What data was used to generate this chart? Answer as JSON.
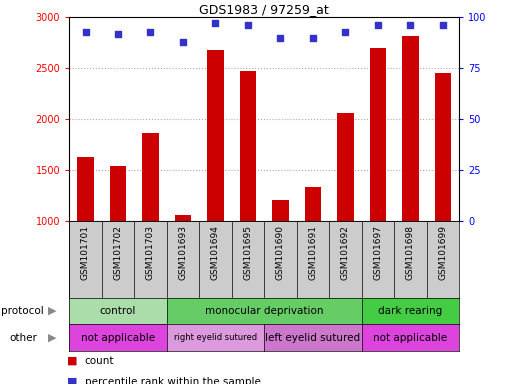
{
  "title": "GDS1983 / 97259_at",
  "samples": [
    "GSM101701",
    "GSM101702",
    "GSM101703",
    "GSM101693",
    "GSM101694",
    "GSM101695",
    "GSM101690",
    "GSM101691",
    "GSM101692",
    "GSM101697",
    "GSM101698",
    "GSM101699"
  ],
  "counts": [
    1630,
    1540,
    1860,
    1060,
    2680,
    2470,
    1200,
    1330,
    2060,
    2700,
    2820,
    2450
  ],
  "percentiles": [
    93,
    92,
    93,
    88,
    97,
    96,
    90,
    90,
    93,
    96,
    96,
    96
  ],
  "ylim_left": [
    1000,
    3000
  ],
  "ylim_right": [
    0,
    100
  ],
  "yticks_left": [
    1000,
    1500,
    2000,
    2500,
    3000
  ],
  "yticks_right": [
    0,
    25,
    50,
    75,
    100
  ],
  "bar_color": "#cc0000",
  "dot_color": "#3333cc",
  "grid_color": "#aaaaaa",
  "xtick_bg": "#cccccc",
  "protocol_groups": [
    {
      "label": "control",
      "start": 0,
      "end": 3,
      "color": "#aaddaa"
    },
    {
      "label": "monocular deprivation",
      "start": 3,
      "end": 9,
      "color": "#66cc66"
    },
    {
      "label": "dark rearing",
      "start": 9,
      "end": 12,
      "color": "#44cc44"
    }
  ],
  "other_groups": [
    {
      "label": "not applicable",
      "start": 0,
      "end": 3,
      "color": "#dd44dd"
    },
    {
      "label": "right eyelid sutured",
      "start": 3,
      "end": 6,
      "color": "#dd99dd"
    },
    {
      "label": "left eyelid sutured",
      "start": 6,
      "end": 9,
      "color": "#cc77cc"
    },
    {
      "label": "not applicable",
      "start": 9,
      "end": 12,
      "color": "#dd44dd"
    }
  ],
  "legend_count_label": "count",
  "legend_pct_label": "percentile rank within the sample",
  "row_label_protocol": "protocol",
  "row_label_other": "other"
}
